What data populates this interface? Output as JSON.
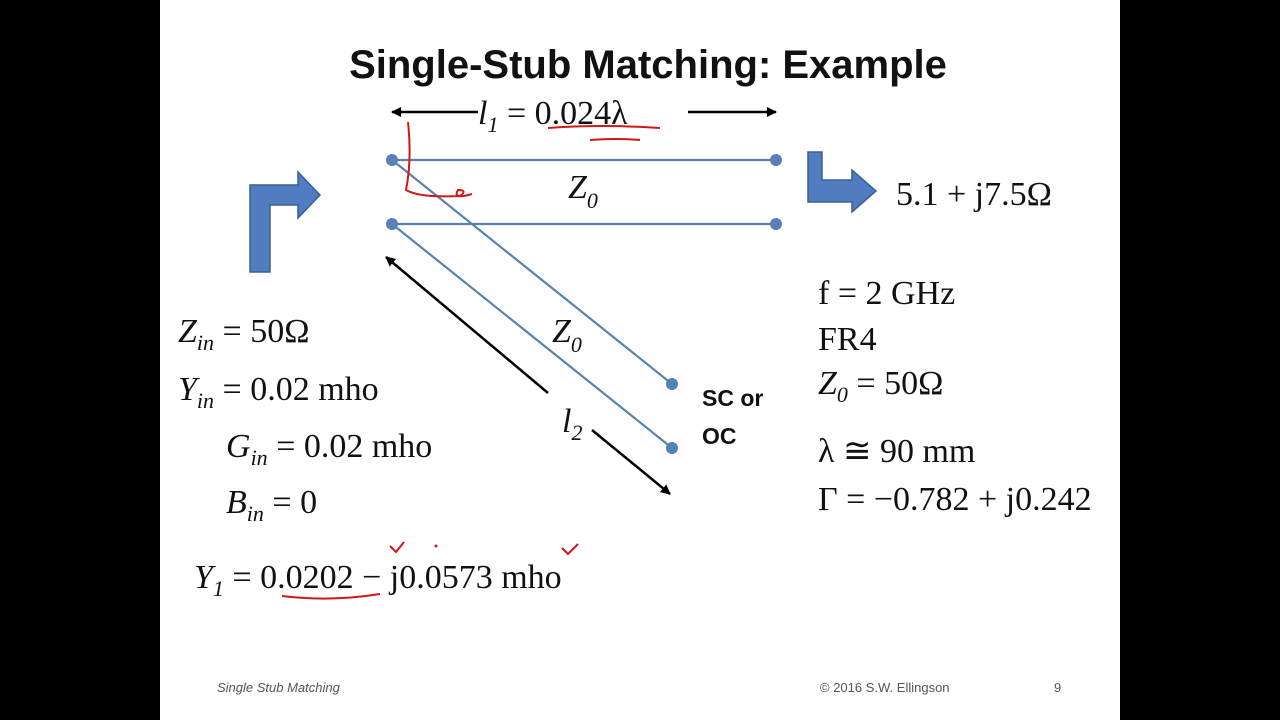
{
  "slide": {
    "title": "Single-Stub Matching: Example",
    "diagram": {
      "l1": {
        "symbol": "l",
        "sub": "1",
        "rest": " = 0.024λ"
      },
      "z0_line": {
        "symbol": "Z",
        "sub": "0"
      },
      "z0_stub": {
        "symbol": "Z",
        "sub": "0"
      },
      "load": "5.1 + j7.5Ω",
      "stub_end": [
        "SC or",
        "OC"
      ],
      "l2": {
        "symbol": "l",
        "sub": "2"
      }
    },
    "left": [
      {
        "symbol": "Z",
        "sub": "in",
        "rest": " = 50Ω"
      },
      {
        "symbol": "Y",
        "sub": "in",
        "rest": " = 0.02 mho"
      },
      {
        "symbol": "G",
        "sub": "in",
        "rest": " = 0.02 mho"
      },
      {
        "symbol": "B",
        "sub": "in",
        "rest": " = 0"
      }
    ],
    "y1": {
      "symbol": "Y",
      "sub": "1",
      "rest": " = 0.0202 − j0.0573 mho"
    },
    "right": {
      "f": "f = 2 GHz",
      "material": "FR4",
      "z0": {
        "symbol": "Z",
        "sub": "0",
        "rest": " = 50Ω"
      },
      "wavelength": "λ ≅ 90 mm",
      "gamma": "Γ = −0.782 + j0.242"
    },
    "footer": {
      "topic": "Single Stub Matching",
      "copyright": "© 2016  S.W. Ellingson",
      "page": "9"
    }
  }
}
